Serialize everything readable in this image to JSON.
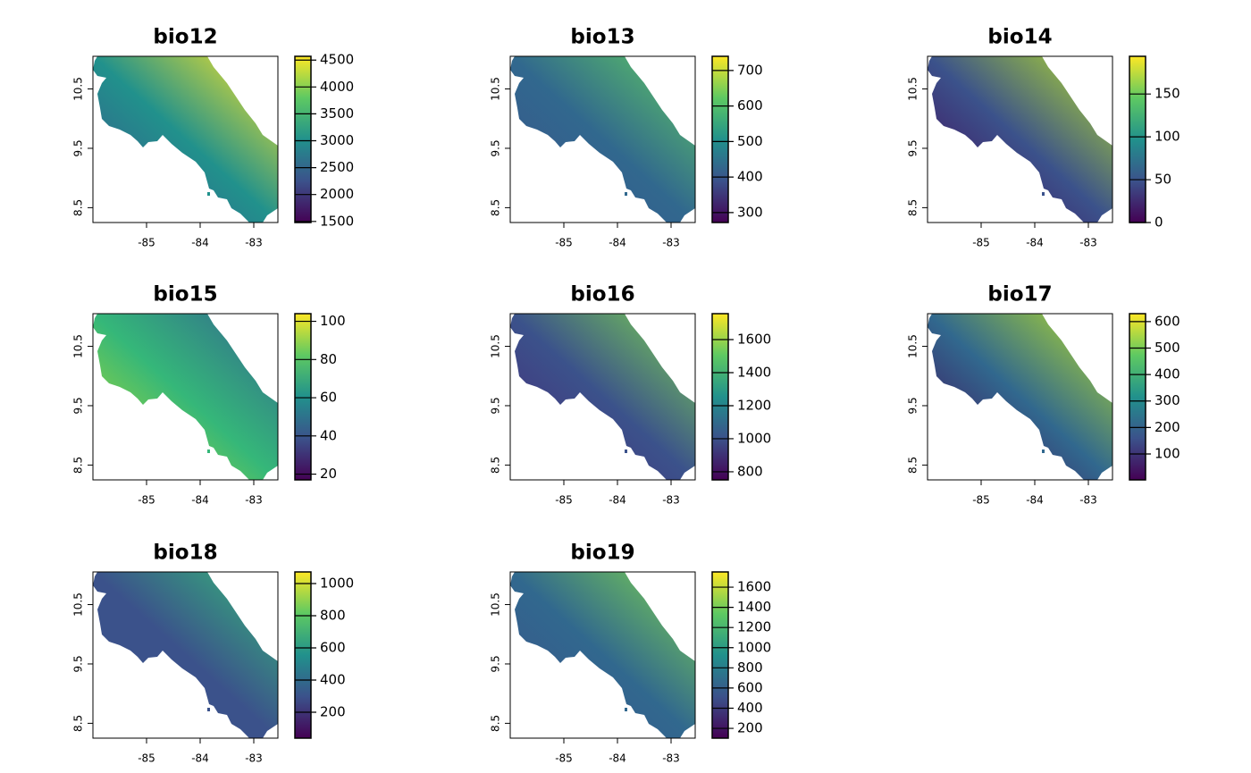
{
  "chart_data": [
    {
      "type": "raster",
      "title": "bio12",
      "colormap": "viridis",
      "xlim": [
        -86,
        -82.55
      ],
      "xticks": [
        -85,
        -84,
        -83
      ],
      "ylim": [
        8.25,
        11.05
      ],
      "yticks": [
        8.5,
        9.5,
        10.5
      ],
      "zlim": [
        1480,
        4570
      ],
      "zticks": [
        1500,
        2000,
        2500,
        3000,
        3500,
        4000,
        4500
      ]
    },
    {
      "type": "raster",
      "title": "bio13",
      "colormap": "viridis",
      "xlim": [
        -86,
        -82.55
      ],
      "xticks": [
        -85,
        -84,
        -83
      ],
      "ylim": [
        8.25,
        11.05
      ],
      "yticks": [
        8.5,
        9.5,
        10.5
      ],
      "zlim": [
        272,
        740
      ],
      "zticks": [
        300,
        400,
        500,
        600,
        700
      ]
    },
    {
      "type": "raster",
      "title": "bio14",
      "colormap": "viridis",
      "xlim": [
        -86,
        -82.55
      ],
      "xticks": [
        -85,
        -84,
        -83
      ],
      "ylim": [
        8.25,
        11.05
      ],
      "yticks": [
        8.5,
        9.5,
        10.5
      ],
      "zlim": [
        0,
        194
      ],
      "zticks": [
        0,
        50,
        100,
        150
      ]
    },
    {
      "type": "raster",
      "title": "bio15",
      "colormap": "viridis",
      "xlim": [
        -86,
        -82.55
      ],
      "xticks": [
        -85,
        -84,
        -83
      ],
      "ylim": [
        8.25,
        11.05
      ],
      "yticks": [
        8.5,
        9.5,
        10.5
      ],
      "zlim": [
        17,
        104
      ],
      "zticks": [
        20,
        40,
        60,
        80,
        100
      ]
    },
    {
      "type": "raster",
      "title": "bio16",
      "colormap": "viridis",
      "xlim": [
        -86,
        -82.55
      ],
      "xticks": [
        -85,
        -84,
        -83
      ],
      "ylim": [
        8.25,
        11.05
      ],
      "yticks": [
        8.5,
        9.5,
        10.5
      ],
      "zlim": [
        751,
        1757
      ],
      "zticks": [
        800,
        1000,
        1200,
        1400,
        1600
      ]
    },
    {
      "type": "raster",
      "title": "bio17",
      "colormap": "viridis",
      "xlim": [
        -86,
        -82.55
      ],
      "xticks": [
        -85,
        -84,
        -83
      ],
      "ylim": [
        8.25,
        11.05
      ],
      "yticks": [
        8.5,
        9.5,
        10.5
      ],
      "zlim": [
        2,
        630
      ],
      "zticks": [
        100,
        200,
        300,
        400,
        500,
        600
      ]
    },
    {
      "type": "raster",
      "title": "bio18",
      "colormap": "viridis",
      "xlim": [
        -86,
        -82.55
      ],
      "xticks": [
        -85,
        -84,
        -83
      ],
      "ylim": [
        8.25,
        11.05
      ],
      "yticks": [
        8.5,
        9.5,
        10.5
      ],
      "zlim": [
        39,
        1072
      ],
      "zticks": [
        200,
        400,
        600,
        800,
        1000
      ]
    },
    {
      "type": "raster",
      "title": "bio19",
      "colormap": "viridis",
      "xlim": [
        -86,
        -82.55
      ],
      "xticks": [
        -85,
        -84,
        -83
      ],
      "ylim": [
        8.25,
        11.05
      ],
      "yticks": [
        8.5,
        9.5,
        10.5
      ],
      "zlim": [
        103,
        1751
      ],
      "zticks": [
        200,
        400,
        600,
        800,
        1000,
        1200,
        1400,
        1600
      ]
    }
  ]
}
